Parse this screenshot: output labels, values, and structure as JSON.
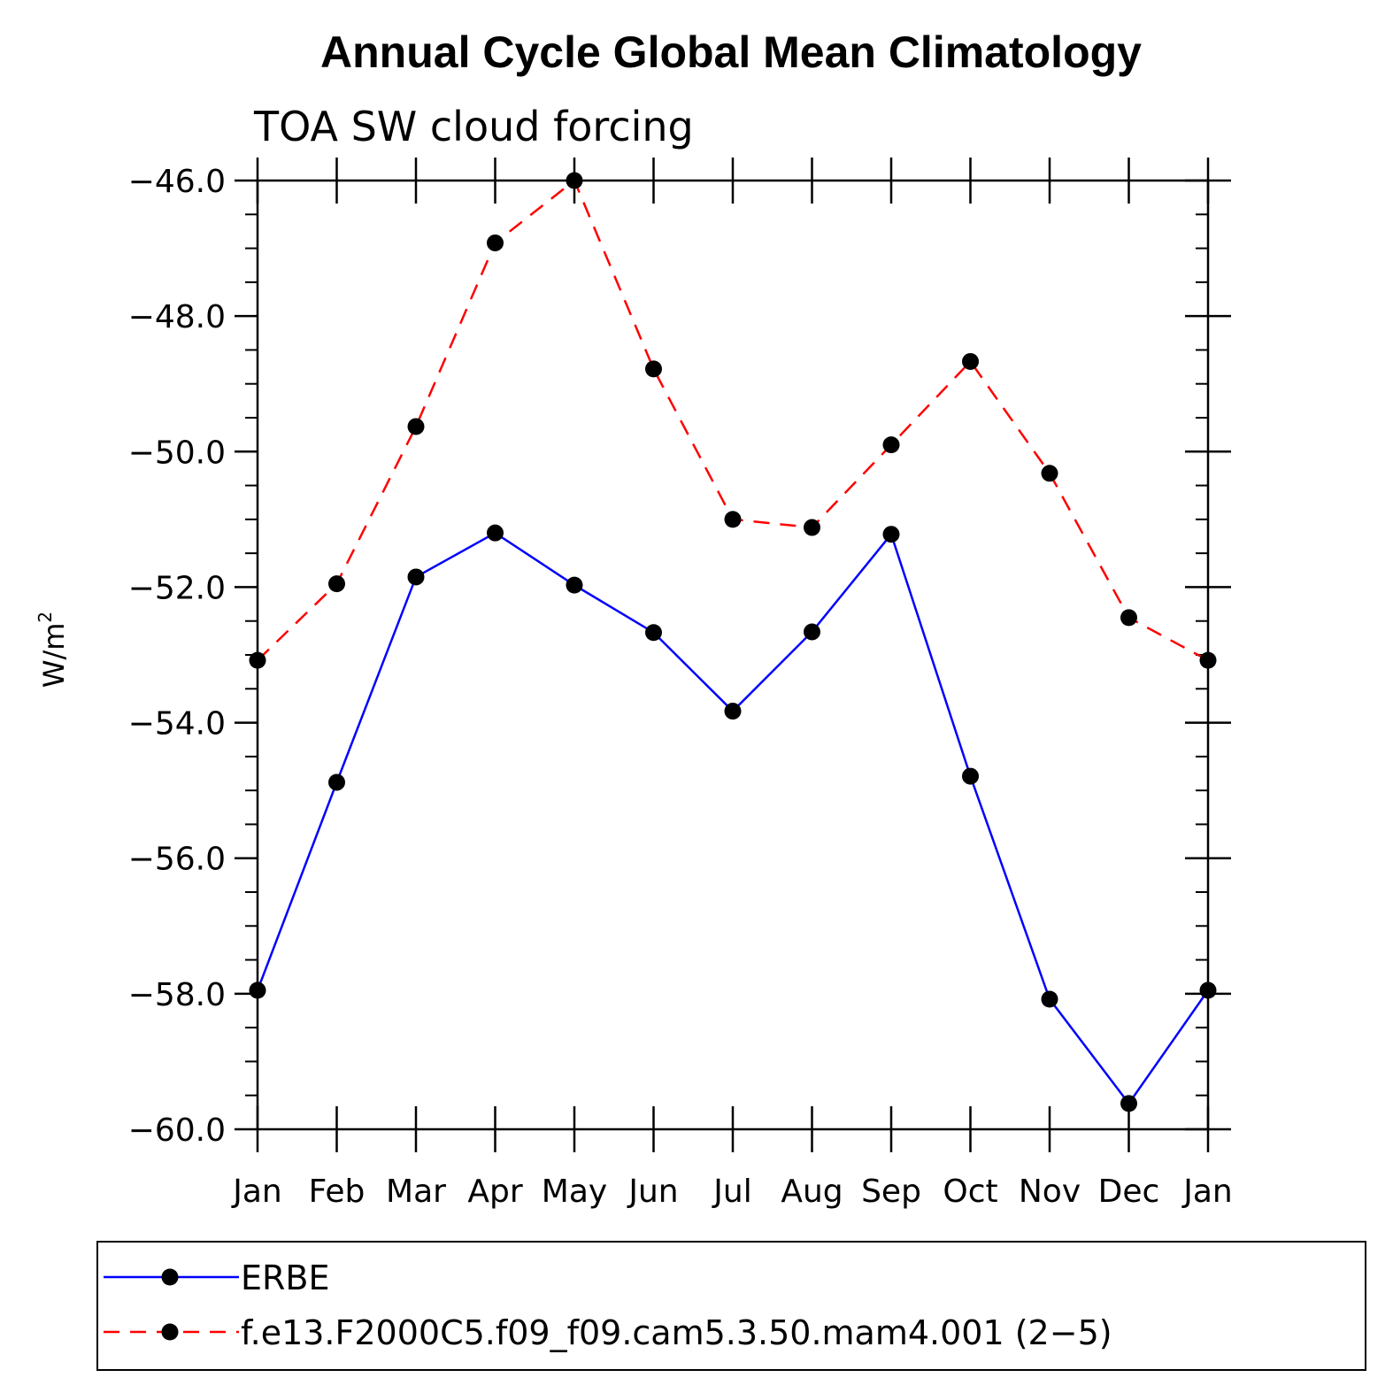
{
  "chart_data": {
    "type": "line",
    "title": "Annual Cycle Global Mean Climatology",
    "subtitle": "TOA SW cloud forcing",
    "xlabel": "",
    "ylabel": "W/m",
    "ylabel_superscript": "2",
    "categories": [
      "Jan",
      "Feb",
      "Mar",
      "Apr",
      "May",
      "Jun",
      "Jul",
      "Aug",
      "Sep",
      "Oct",
      "Nov",
      "Dec",
      "Jan"
    ],
    "ylim": [
      -60.0,
      -46.0
    ],
    "yticks": [
      "-46.0",
      "-48.0",
      "-50.0",
      "-52.0",
      "-54.0",
      "-56.0",
      "-58.0",
      "-60.0"
    ],
    "ytick_values": [
      -46,
      -48,
      -50,
      -52,
      -54,
      -56,
      -58,
      -60
    ],
    "grid": false,
    "legend_position": "bottom",
    "series": [
      {
        "name": "ERBE",
        "color": "#0000ff",
        "style": "solid",
        "values": [
          -57.95,
          -54.88,
          -51.85,
          -51.2,
          -51.97,
          -52.67,
          -53.83,
          -52.66,
          -51.22,
          -54.79,
          -58.08,
          -59.62,
          -57.95
        ]
      },
      {
        "name": "f.e13.F2000C5.f09_f09.cam5.3.50.mam4.001 (2−5)",
        "color": "#ff0000",
        "style": "dashed",
        "values": [
          -53.08,
          -51.95,
          -49.63,
          -46.92,
          -46.0,
          -48.78,
          -51.0,
          -51.12,
          -49.9,
          -48.67,
          -50.32,
          -52.45,
          -53.08
        ]
      }
    ],
    "marker_color": "#000000"
  }
}
